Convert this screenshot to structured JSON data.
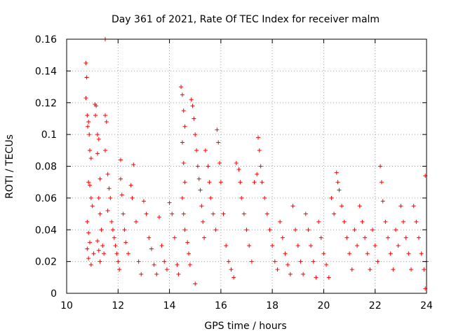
{
  "chart_data": {
    "type": "scatter",
    "title": "Day 361 of 2021, Rate Of TEC Index for receiver malm",
    "xlabel": "GPS time / hours",
    "ylabel": "ROTI / TECUs",
    "xlim": [
      10,
      24
    ],
    "ylim": [
      0,
      0.16
    ],
    "x_ticks": [
      10,
      12,
      14,
      16,
      18,
      20,
      22,
      24
    ],
    "x_tick_labels": [
      "10",
      "12",
      "14",
      "16",
      "18",
      "20",
      "22",
      "24"
    ],
    "y_ticks": [
      0,
      0.02,
      0.04,
      0.06,
      0.08,
      0.1,
      0.12,
      0.14,
      0.16
    ],
    "y_tick_labels": [
      "0",
      "0.02",
      "0.04",
      "0.06",
      "0.08",
      "0.1",
      "0.12",
      "0.14",
      "0.16"
    ],
    "grid": true,
    "marker": "+",
    "color": "#ff0000",
    "series": [
      {
        "name": "ROTI",
        "points": [
          [
            10.75,
            0.145
          ],
          [
            10.78,
            0.136
          ],
          [
            10.75,
            0.123
          ],
          [
            10.8,
            0.112
          ],
          [
            10.82,
            0.105
          ],
          [
            10.85,
            0.108
          ],
          [
            10.88,
            0.1
          ],
          [
            10.9,
            0.09
          ],
          [
            10.95,
            0.085
          ],
          [
            10.85,
            0.07
          ],
          [
            10.9,
            0.068
          ],
          [
            10.95,
            0.06
          ],
          [
            11.0,
            0.055
          ],
          [
            10.8,
            0.045
          ],
          [
            10.85,
            0.038
          ],
          [
            10.9,
            0.032
          ],
          [
            10.8,
            0.028
          ],
          [
            10.85,
            0.022
          ],
          [
            10.95,
            0.018
          ],
          [
            11.05,
            0.025
          ],
          [
            11.1,
            0.119
          ],
          [
            11.15,
            0.118
          ],
          [
            11.12,
            0.112
          ],
          [
            11.2,
            0.1
          ],
          [
            11.25,
            0.097
          ],
          [
            11.2,
            0.088
          ],
          [
            11.3,
            0.072
          ],
          [
            11.25,
            0.06
          ],
          [
            11.3,
            0.05
          ],
          [
            11.35,
            0.04
          ],
          [
            11.2,
            0.033
          ],
          [
            11.25,
            0.027
          ],
          [
            11.3,
            0.02
          ],
          [
            11.4,
            0.03
          ],
          [
            11.45,
            0.025
          ],
          [
            11.5,
            0.16
          ],
          [
            11.5,
            0.112
          ],
          [
            11.55,
            0.108
          ],
          [
            11.5,
            0.09
          ],
          [
            11.6,
            0.075
          ],
          [
            11.65,
            0.066
          ],
          [
            11.7,
            0.06
          ],
          [
            11.6,
            0.052
          ],
          [
            11.75,
            0.045
          ],
          [
            11.8,
            0.04
          ],
          [
            11.85,
            0.035
          ],
          [
            11.9,
            0.03
          ],
          [
            11.95,
            0.025
          ],
          [
            12.0,
            0.02
          ],
          [
            12.05,
            0.015
          ],
          [
            12.1,
            0.084
          ],
          [
            12.1,
            0.072
          ],
          [
            12.15,
            0.062
          ],
          [
            12.2,
            0.05
          ],
          [
            12.25,
            0.04
          ],
          [
            12.3,
            0.032
          ],
          [
            12.4,
            0.025
          ],
          [
            12.5,
            0.068
          ],
          [
            12.55,
            0.06
          ],
          [
            12.6,
            0.081
          ],
          [
            12.7,
            0.045
          ],
          [
            12.8,
            0.02
          ],
          [
            12.9,
            0.012
          ],
          [
            13.0,
            0.058
          ],
          [
            13.1,
            0.05
          ],
          [
            13.2,
            0.035
          ],
          [
            13.3,
            0.028
          ],
          [
            13.4,
            0.018
          ],
          [
            13.5,
            0.012
          ],
          [
            13.6,
            0.048
          ],
          [
            13.7,
            0.03
          ],
          [
            13.8,
            0.02
          ],
          [
            13.9,
            0.015
          ],
          [
            14.0,
            0.057
          ],
          [
            14.1,
            0.05
          ],
          [
            14.2,
            0.035
          ],
          [
            14.3,
            0.018
          ],
          [
            14.35,
            0.012
          ],
          [
            14.45,
            0.13
          ],
          [
            14.5,
            0.125
          ],
          [
            14.55,
            0.115
          ],
          [
            14.6,
            0.105
          ],
          [
            14.5,
            0.095
          ],
          [
            14.55,
            0.082
          ],
          [
            14.6,
            0.07
          ],
          [
            14.5,
            0.06
          ],
          [
            14.55,
            0.05
          ],
          [
            14.6,
            0.04
          ],
          [
            14.7,
            0.032
          ],
          [
            14.75,
            0.025
          ],
          [
            14.8,
            0.018
          ],
          [
            14.85,
            0.122
          ],
          [
            14.9,
            0.118
          ],
          [
            14.95,
            0.11
          ],
          [
            15.0,
            0.1
          ],
          [
            15.05,
            0.09
          ],
          [
            15.1,
            0.08
          ],
          [
            15.15,
            0.072
          ],
          [
            15.2,
            0.065
          ],
          [
            15.25,
            0.055
          ],
          [
            15.3,
            0.045
          ],
          [
            15.35,
            0.035
          ],
          [
            15.0,
            0.006
          ],
          [
            15.4,
            0.09
          ],
          [
            15.5,
            0.08
          ],
          [
            15.55,
            0.07
          ],
          [
            15.6,
            0.06
          ],
          [
            15.7,
            0.05
          ],
          [
            15.8,
            0.04
          ],
          [
            15.85,
            0.103
          ],
          [
            15.9,
            0.095
          ],
          [
            15.95,
            0.082
          ],
          [
            16.0,
            0.07
          ],
          [
            16.1,
            0.05
          ],
          [
            16.2,
            0.03
          ],
          [
            16.3,
            0.02
          ],
          [
            16.4,
            0.015
          ],
          [
            16.5,
            0.01
          ],
          [
            16.6,
            0.082
          ],
          [
            16.7,
            0.078
          ],
          [
            16.75,
            0.07
          ],
          [
            16.8,
            0.06
          ],
          [
            16.9,
            0.05
          ],
          [
            17.0,
            0.04
          ],
          [
            17.1,
            0.03
          ],
          [
            17.2,
            0.02
          ],
          [
            17.3,
            0.07
          ],
          [
            17.4,
            0.075
          ],
          [
            17.45,
            0.098
          ],
          [
            17.5,
            0.09
          ],
          [
            17.55,
            0.08
          ],
          [
            17.6,
            0.07
          ],
          [
            17.7,
            0.06
          ],
          [
            17.8,
            0.05
          ],
          [
            17.9,
            0.04
          ],
          [
            18.0,
            0.03
          ],
          [
            18.1,
            0.02
          ],
          [
            18.2,
            0.015
          ],
          [
            18.3,
            0.045
          ],
          [
            18.4,
            0.035
          ],
          [
            18.5,
            0.025
          ],
          [
            18.6,
            0.018
          ],
          [
            18.7,
            0.012
          ],
          [
            18.8,
            0.055
          ],
          [
            18.9,
            0.04
          ],
          [
            19.0,
            0.03
          ],
          [
            19.1,
            0.02
          ],
          [
            19.2,
            0.012
          ],
          [
            19.3,
            0.05
          ],
          [
            19.4,
            0.04
          ],
          [
            19.5,
            0.03
          ],
          [
            19.6,
            0.02
          ],
          [
            19.7,
            0.01
          ],
          [
            19.8,
            0.045
          ],
          [
            19.9,
            0.035
          ],
          [
            20.0,
            0.025
          ],
          [
            20.1,
            0.018
          ],
          [
            20.2,
            0.01
          ],
          [
            20.3,
            0.06
          ],
          [
            20.4,
            0.05
          ],
          [
            20.5,
            0.076
          ],
          [
            20.55,
            0.07
          ],
          [
            20.6,
            0.065
          ],
          [
            20.7,
            0.055
          ],
          [
            20.8,
            0.045
          ],
          [
            20.9,
            0.035
          ],
          [
            21.0,
            0.025
          ],
          [
            21.1,
            0.015
          ],
          [
            21.2,
            0.04
          ],
          [
            21.3,
            0.03
          ],
          [
            21.4,
            0.055
          ],
          [
            21.5,
            0.045
          ],
          [
            21.6,
            0.035
          ],
          [
            21.7,
            0.025
          ],
          [
            21.8,
            0.015
          ],
          [
            21.9,
            0.04
          ],
          [
            22.0,
            0.03
          ],
          [
            22.1,
            0.02
          ],
          [
            22.2,
            0.08
          ],
          [
            22.25,
            0.07
          ],
          [
            22.3,
            0.058
          ],
          [
            22.4,
            0.045
          ],
          [
            22.5,
            0.035
          ],
          [
            22.6,
            0.025
          ],
          [
            22.7,
            0.015
          ],
          [
            22.8,
            0.04
          ],
          [
            22.9,
            0.03
          ],
          [
            23.0,
            0.055
          ],
          [
            23.1,
            0.045
          ],
          [
            23.2,
            0.035
          ],
          [
            23.3,
            0.025
          ],
          [
            23.4,
            0.015
          ],
          [
            23.5,
            0.055
          ],
          [
            23.6,
            0.045
          ],
          [
            23.7,
            0.035
          ],
          [
            23.8,
            0.025
          ],
          [
            23.9,
            0.015
          ],
          [
            23.95,
            0.074
          ],
          [
            23.95,
            0.003
          ],
          [
            24.0,
            0.02
          ]
        ]
      }
    ]
  }
}
